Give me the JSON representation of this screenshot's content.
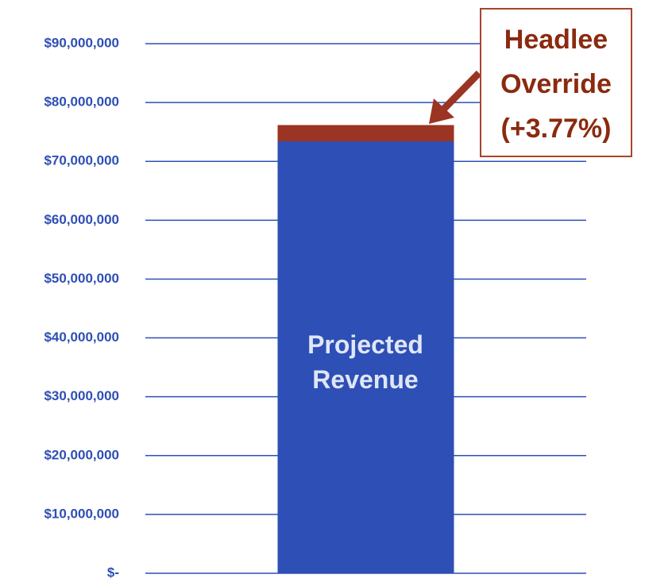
{
  "chart_data": {
    "type": "stacked_bar",
    "categories": [
      null
    ],
    "series": [
      {
        "name": "Projected Revenue",
        "color": "#2e4fb5",
        "values": [
          73400000
        ]
      },
      {
        "name": "Headlee Override (+3.77%)",
        "color": "#9b3422",
        "values": [
          2770000
        ]
      }
    ],
    "ylim": [
      0,
      90000000
    ],
    "yticks": [
      {
        "value": 0,
        "label": "$-"
      },
      {
        "value": 10000000,
        "label": "$10,000,000"
      },
      {
        "value": 20000000,
        "label": "$20,000,000"
      },
      {
        "value": 30000000,
        "label": "$30,000,000"
      },
      {
        "value": 40000000,
        "label": "$40,000,000"
      },
      {
        "value": 50000000,
        "label": "$50,000,000"
      },
      {
        "value": 60000000,
        "label": "$60,000,000"
      },
      {
        "value": 70000000,
        "label": "$70,000,000"
      },
      {
        "value": 80000000,
        "label": "$80,000,000"
      },
      {
        "value": 90000000,
        "label": "$90,000,000"
      }
    ],
    "grid": true
  }
}
